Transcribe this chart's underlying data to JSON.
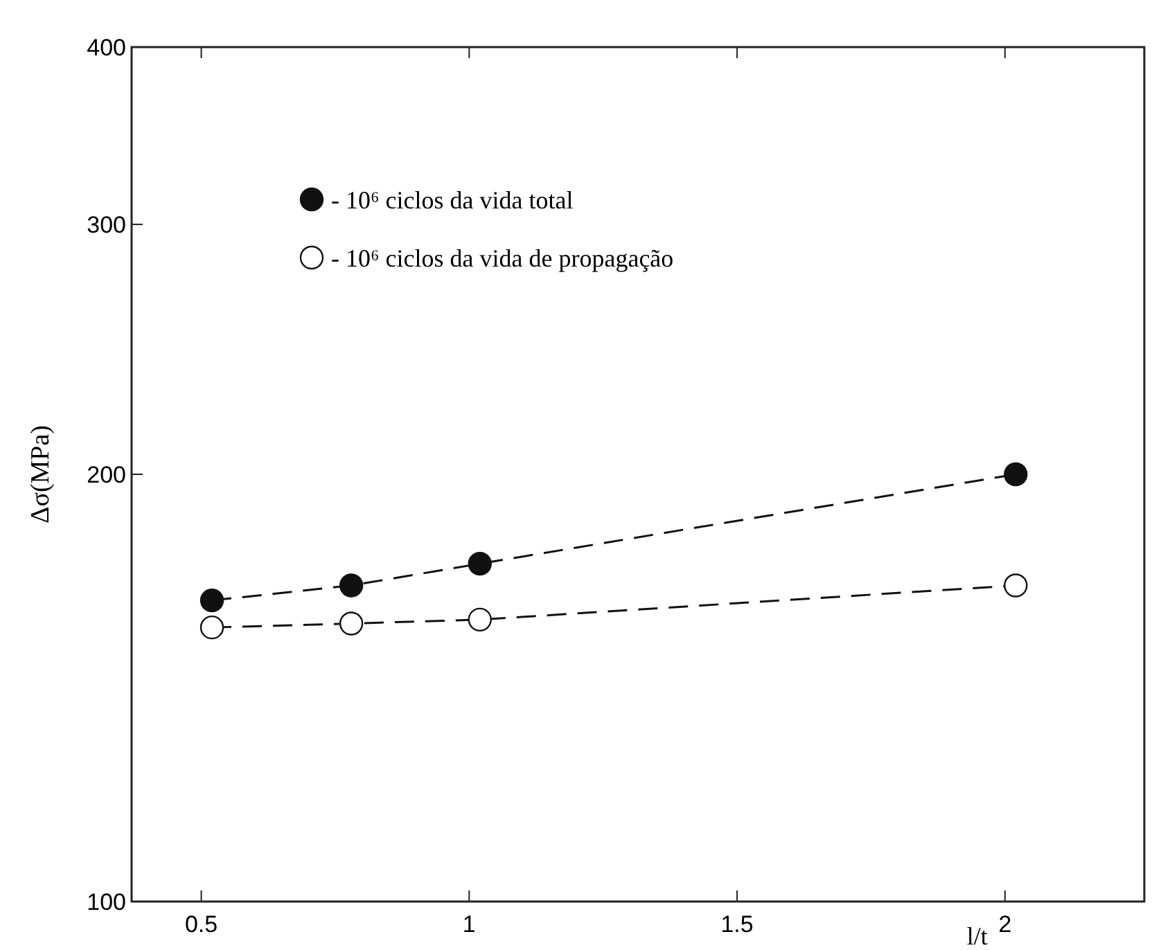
{
  "chart_data": {
    "type": "line",
    "xlabel": "l/t",
    "ylabel": "Δσ(MPa)",
    "x": [
      0.52,
      0.78,
      1.02,
      2.02
    ],
    "series": [
      {
        "name": "- 10⁶ ciclos da vida total",
        "color": "#111111",
        "values": [
          163,
          167,
          173,
          200
        ]
      },
      {
        "name": "- 10⁶ ciclos da vida de propagação",
        "color": "#ffffff",
        "values": [
          156,
          157,
          158,
          167
        ]
      }
    ],
    "xlim": [
      0.37,
      2.26
    ],
    "xticks": [
      0.5,
      1,
      1.5,
      2
    ],
    "ylim": [
      100,
      400
    ],
    "yticks": [
      100,
      200,
      300,
      400
    ],
    "log": true,
    "grid": false,
    "legend": "top left",
    "marker": "circle",
    "line_style": "dashed"
  }
}
